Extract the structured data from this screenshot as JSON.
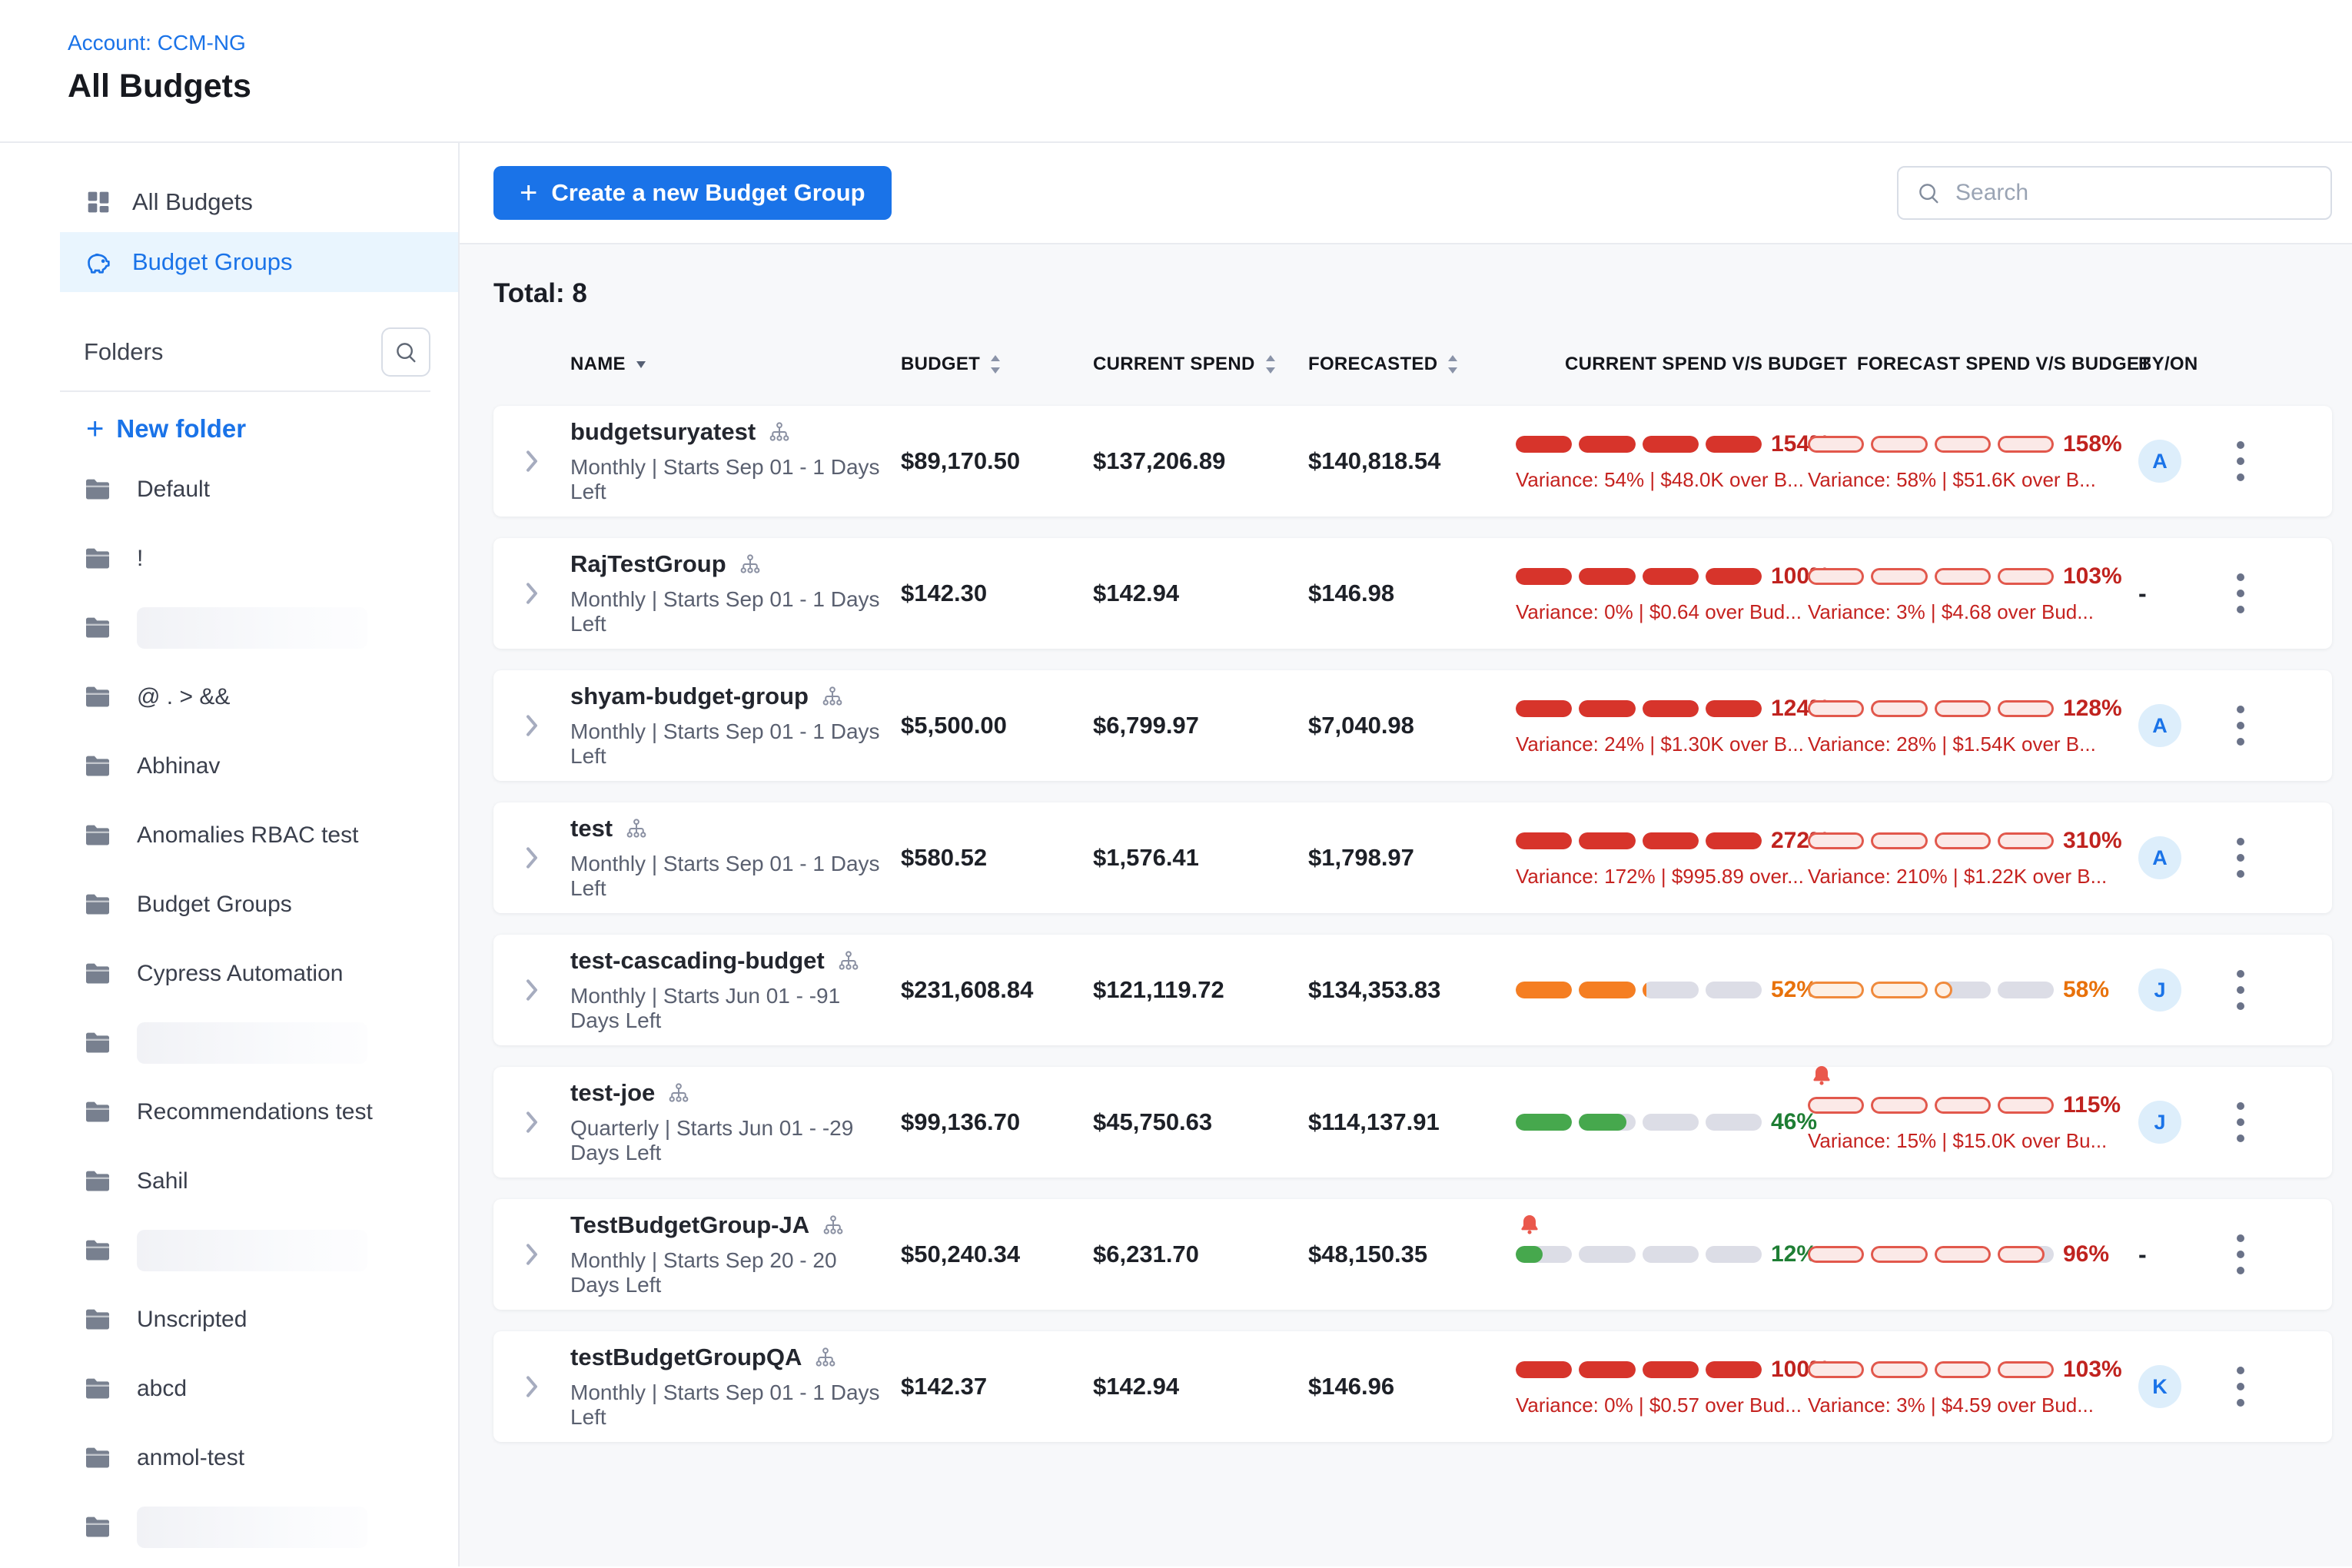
{
  "header": {
    "account_label": "Account: CCM-NG",
    "page_title": "All Budgets"
  },
  "sidebar": {
    "items": [
      {
        "label": "All Budgets",
        "icon": "grid-icon",
        "active": false
      },
      {
        "label": "Budget Groups",
        "icon": "piggy-bank-icon",
        "active": true
      }
    ],
    "folders_title": "Folders",
    "new_folder_label": "New folder",
    "folders": [
      {
        "name": "Default"
      },
      {
        "name": "!"
      },
      {
        "redacted": true
      },
      {
        "name": "@ . > &&"
      },
      {
        "name": "Abhinav"
      },
      {
        "name": "Anomalies RBAC test"
      },
      {
        "name": "Budget Groups"
      },
      {
        "name": "Cypress Automation"
      },
      {
        "redacted": true
      },
      {
        "name": "Recommendations test"
      },
      {
        "name": "Sahil"
      },
      {
        "redacted": true
      },
      {
        "name": "Unscripted"
      },
      {
        "name": "abcd"
      },
      {
        "name": "anmol-test"
      },
      {
        "redacted": true
      },
      {
        "redacted": true
      }
    ]
  },
  "toolbar": {
    "create_button": "Create a new Budget Group",
    "search_placeholder": "Search"
  },
  "table": {
    "total_label": "Total: 8",
    "columns": [
      "NAME",
      "BUDGET",
      "CURRENT SPEND",
      "FORECASTED",
      "CURRENT SPEND V/S BUDGET",
      "FORECAST SPEND V/S BUDGET",
      "BY/ON"
    ],
    "rows": [
      {
        "name": "budgetsuryatest",
        "schedule": "Monthly | Starts Sep 01 - 1 Days Left",
        "budget": "$89,170.50",
        "current_spend": "$137,206.89",
        "forecasted": "$140,818.54",
        "current_bar": {
          "label": "154%",
          "fill": 100,
          "variant": "solid",
          "color": "red",
          "tone": "red",
          "variance": "Variance: 54% | $48.0K over B..."
        },
        "forecast_bar": {
          "label": "158%",
          "fill": 100,
          "variant": "outline",
          "color": "red",
          "tone": "red",
          "variance": "Variance: 58% | $51.6K over B..."
        },
        "by_on": "A"
      },
      {
        "name": "RajTestGroup",
        "schedule": "Monthly | Starts Sep 01 - 1 Days Left",
        "budget": "$142.30",
        "current_spend": "$142.94",
        "forecasted": "$146.98",
        "current_bar": {
          "label": "100%",
          "fill": 100,
          "variant": "solid",
          "color": "red",
          "tone": "red",
          "variance": "Variance: 0% | $0.64 over Bud..."
        },
        "forecast_bar": {
          "label": "103%",
          "fill": 100,
          "variant": "outline",
          "color": "red",
          "tone": "red",
          "variance": "Variance: 3% | $4.68 over Bud..."
        },
        "by_on": "-"
      },
      {
        "name": "shyam-budget-group",
        "schedule": "Monthly | Starts Sep 01 - 1 Days Left",
        "budget": "$5,500.00",
        "current_spend": "$6,799.97",
        "forecasted": "$7,040.98",
        "current_bar": {
          "label": "124%",
          "fill": 100,
          "variant": "solid",
          "color": "red",
          "tone": "red",
          "variance": "Variance: 24% | $1.30K over B..."
        },
        "forecast_bar": {
          "label": "128%",
          "fill": 100,
          "variant": "outline",
          "color": "red",
          "tone": "red",
          "variance": "Variance: 28% | $1.54K over B..."
        },
        "by_on": "A"
      },
      {
        "name": "test",
        "schedule": "Monthly | Starts Sep 01 - 1 Days Left",
        "budget": "$580.52",
        "current_spend": "$1,576.41",
        "forecasted": "$1,798.97",
        "current_bar": {
          "label": "272%",
          "fill": 100,
          "variant": "solid",
          "color": "red",
          "tone": "red",
          "variance": "Variance: 172% | $995.89 over..."
        },
        "forecast_bar": {
          "label": "310%",
          "fill": 100,
          "variant": "outline",
          "color": "red",
          "tone": "red",
          "variance": "Variance: 210% | $1.22K over B..."
        },
        "by_on": "A"
      },
      {
        "name": "test-cascading-budget",
        "schedule": "Monthly | Starts Jun 01 - -91 Days Left",
        "budget": "$231,608.84",
        "current_spend": "$121,119.72",
        "forecasted": "$134,353.83",
        "current_bar": {
          "label": "52%",
          "fill": 52,
          "variant": "solid",
          "color": "orange",
          "tone": "orange"
        },
        "forecast_bar": {
          "label": "58%",
          "fill": 58,
          "variant": "outline",
          "color": "orange",
          "tone": "orange"
        },
        "by_on": "J"
      },
      {
        "name": "test-joe",
        "schedule": "Quarterly | Starts Jun 01 - -29 Days Left",
        "budget": "$99,136.70",
        "current_spend": "$45,750.63",
        "forecasted": "$114,137.91",
        "current_bar": {
          "label": "46%",
          "fill": 46,
          "variant": "solid",
          "color": "green",
          "tone": "green"
        },
        "forecast_bar": {
          "label": "115%",
          "fill": 100,
          "variant": "outline",
          "color": "red",
          "tone": "red",
          "bell": true,
          "variance": "Variance: 15% | $15.0K over Bu..."
        },
        "by_on": "J"
      },
      {
        "name": "TestBudgetGroup-JA",
        "schedule": "Monthly | Starts Sep 20 - 20 Days Left",
        "budget": "$50,240.34",
        "current_spend": "$6,231.70",
        "forecasted": "$48,150.35",
        "current_bar": {
          "label": "12%",
          "fill": 12,
          "variant": "solid",
          "color": "green",
          "tone": "green",
          "bell": true
        },
        "forecast_bar": {
          "label": "96%",
          "fill": 96,
          "variant": "outline",
          "color": "red",
          "tone": "red"
        },
        "by_on": "-"
      },
      {
        "name": "testBudgetGroupQA",
        "schedule": "Monthly | Starts Sep 01 - 1 Days Left",
        "budget": "$142.37",
        "current_spend": "$142.94",
        "forecasted": "$146.96",
        "current_bar": {
          "label": "100%",
          "fill": 100,
          "variant": "solid",
          "color": "red",
          "tone": "red",
          "variance": "Variance: 0% | $0.57 over Bud..."
        },
        "forecast_bar": {
          "label": "103%",
          "fill": 100,
          "variant": "outline",
          "color": "red",
          "tone": "red",
          "variance": "Variance: 3% | $4.59 over Bud..."
        },
        "by_on": "K"
      }
    ]
  },
  "palette": {
    "accent_blue": "#1a73e8",
    "bar_red": "#d7342b",
    "bar_red_outline": "#e2584c",
    "bar_red_bg": "#fbe9e7",
    "bar_orange": "#f57e22",
    "bar_orange_outline": "#f08a3c",
    "bar_orange_bg": "#fdf0e5",
    "bar_green": "#46a84d",
    "bar_track": "#dcdde6",
    "pct_red": "#c0231f",
    "pct_orange": "#e8710a",
    "pct_green": "#1e7e34",
    "variance_red": "#c5221f",
    "avatar_bg": "#ddeefb",
    "bell_red": "#ea584c"
  }
}
